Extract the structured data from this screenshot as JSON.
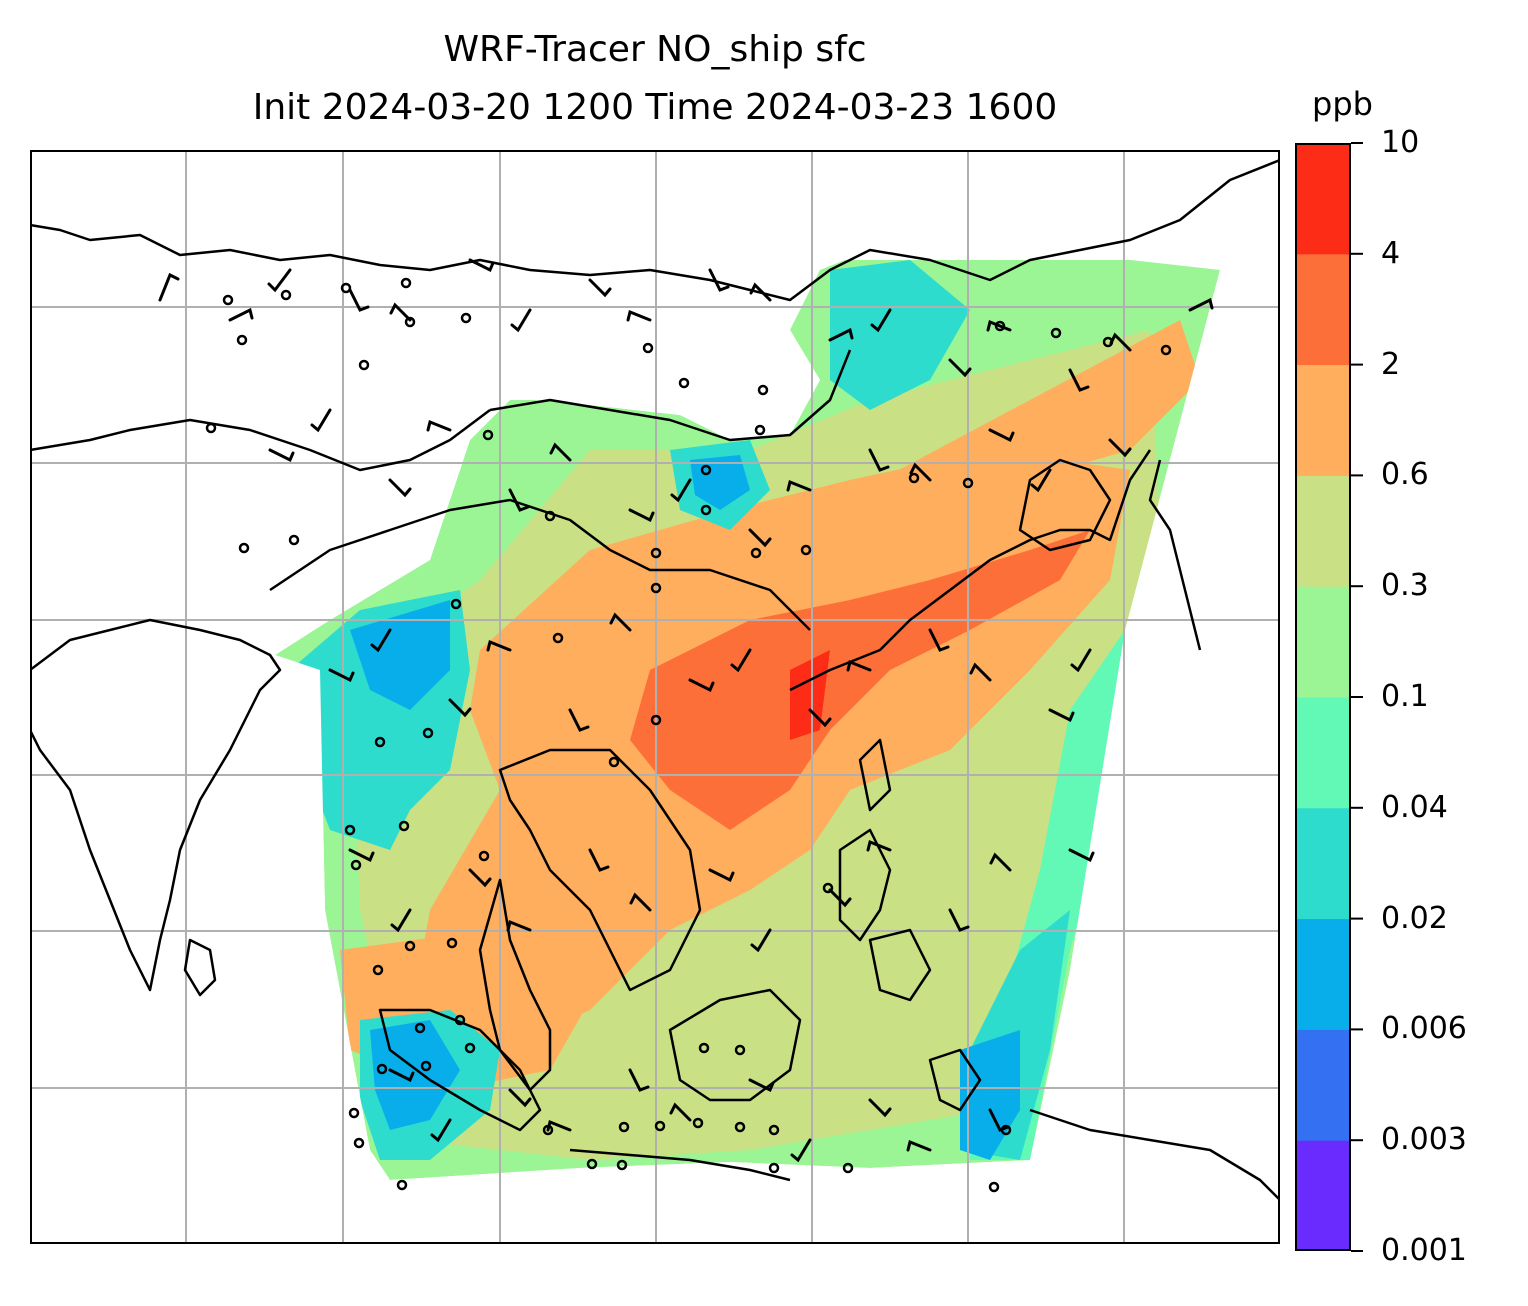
{
  "title": {
    "line1": "WRF-Tracer NO_ship sfc",
    "line2": "Init 2024-03-20 1200 Time 2024-03-23 1600"
  },
  "colorbar": {
    "unit": "ppb",
    "levels": [
      "0.001",
      "0.003",
      "0.006",
      "0.02",
      "0.04",
      "0.1",
      "0.3",
      "0.6",
      "2",
      "4",
      "10"
    ],
    "colors": [
      "#6a2bff",
      "#3470f2",
      "#08aeea",
      "#2ddccd",
      "#62f9b6",
      "#9bf595",
      "#c9e084",
      "#feae5c",
      "#fd6f39",
      "#fc2c16"
    ]
  },
  "map": {
    "gridlines": true,
    "features": [
      "coastlines",
      "country-borders",
      "tracer-concentration-field",
      "wind-barbs"
    ]
  }
}
